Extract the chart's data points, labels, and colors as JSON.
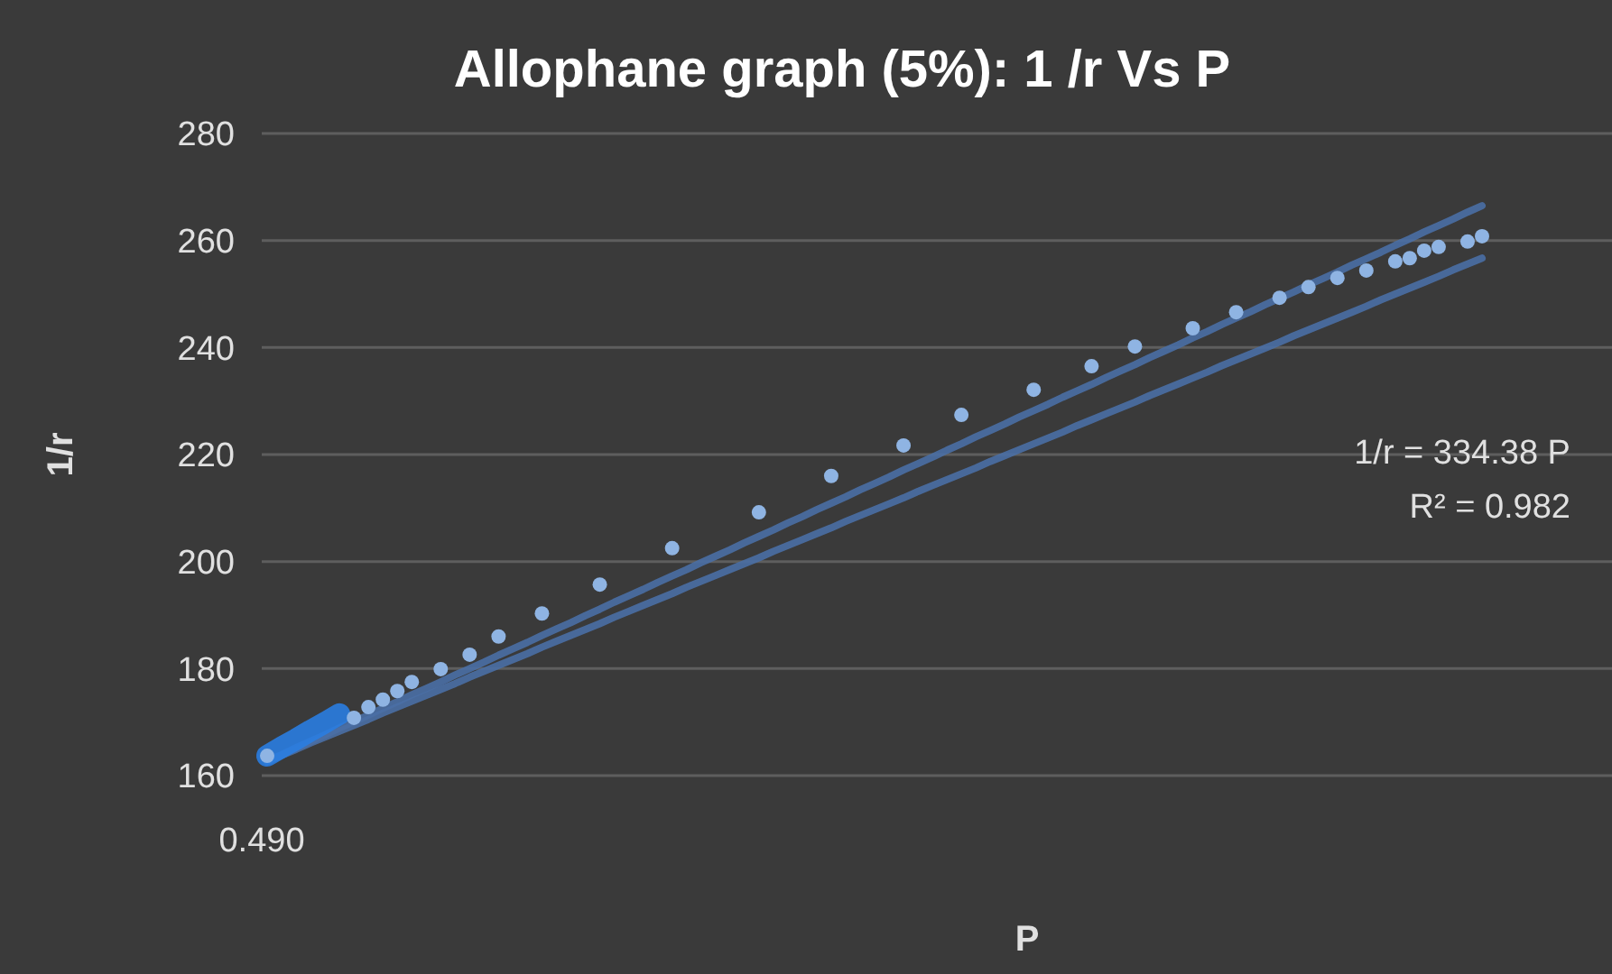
{
  "chart_data": {
    "type": "scatter",
    "title": "Allophane graph (5%): 1 /r Vs P",
    "xlabel": "P",
    "ylabel": "1/r",
    "categories": [
      null,
      null,
      null,
      null,
      null,
      null,
      null,
      null,
      null,
      null,
      null,
      null,
      null,
      null,
      null,
      null,
      null,
      null,
      null,
      null,
      null,
      null,
      null,
      null,
      null,
      null,
      null,
      null,
      null,
      null,
      null,
      null,
      null,
      null,
      null,
      null,
      null,
      null,
      null,
      null,
      null,
      null,
      null,
      null,
      null,
      null,
      null,
      null,
      null,
      null,
      null,
      null,
      null,
      null,
      null,
      null,
      null,
      null,
      null,
      null,
      null,
      null,
      null,
      null,
      null,
      null,
      null,
      null,
      null,
      null,
      null,
      null,
      null,
      null,
      null,
      null,
      null,
      null,
      null,
      null,
      null,
      null,
      null,
      null,
      null
    ],
    "ylim": [
      160,
      280
    ],
    "yticks": [
      160,
      180,
      200,
      220,
      240,
      260,
      280
    ],
    "grid": "y",
    "annotations": [
      "0.490",
      "1/r = 334.38 P",
      "R² = 0.982"
    ],
    "series": [
      {
        "type": "line",
        "color": "#4a6fa5",
        "marker": "none",
        "values": [
          162.7,
          163.9,
          165.2,
          166.4,
          167.6,
          168.9,
          170.1,
          171.3,
          172.6,
          173.8,
          175.1,
          176.3,
          177.5,
          178.8,
          180.0,
          181.2,
          182.5,
          183.7,
          184.9,
          186.2,
          187.4,
          188.6,
          189.9,
          191.1,
          192.4,
          193.6,
          194.8,
          196.1,
          197.3,
          198.5,
          199.8,
          201.0,
          202.2,
          203.5,
          204.7,
          205.9,
          207.2,
          208.4,
          209.7,
          210.9,
          212.1,
          213.4,
          214.6,
          215.8,
          217.1,
          218.3,
          219.5,
          220.8,
          222.0,
          223.3,
          224.5,
          225.7,
          227.0,
          228.2,
          229.4,
          230.7,
          231.9,
          233.1,
          234.4,
          235.6,
          236.8,
          238.1,
          239.3,
          240.5,
          241.8,
          243.0,
          244.3,
          245.5,
          246.7,
          248.0,
          249.2,
          250.4,
          251.7,
          252.9,
          254.1,
          255.4,
          256.6,
          257.8,
          259.1,
          260.3,
          261.6,
          262.8,
          264.0,
          265.3,
          266.5
        ]
      },
      {
        "type": "line",
        "color": "#4a6fa5",
        "marker": "none",
        "values": [
          162.7,
          163.8,
          164.9,
          166.1,
          167.2,
          168.3,
          169.4,
          170.5,
          171.7,
          172.8,
          173.9,
          175.0,
          176.1,
          177.2,
          178.4,
          179.5,
          180.6,
          181.7,
          182.8,
          184.0,
          185.1,
          186.2,
          187.3,
          188.4,
          189.6,
          190.7,
          191.8,
          192.9,
          194.0,
          195.2,
          196.3,
          197.4,
          198.5,
          199.6,
          200.7,
          201.9,
          203.0,
          204.1,
          205.2,
          206.3,
          207.5,
          208.6,
          209.7,
          210.8,
          211.9,
          213.1,
          214.2,
          215.3,
          216.4,
          217.5,
          218.7,
          219.8,
          220.9,
          222.0,
          223.1,
          224.2,
          225.4,
          226.5,
          227.6,
          228.7,
          229.8,
          231.0,
          232.1,
          233.2,
          234.3,
          235.4,
          236.6,
          237.7,
          238.8,
          239.9,
          241.0,
          242.2,
          243.3,
          244.4,
          245.5,
          246.6,
          247.7,
          248.9,
          250.0,
          251.1,
          252.2,
          253.3,
          254.5,
          255.6,
          256.7
        ]
      },
      {
        "type": "line",
        "color": "#2a7de1",
        "marker": "none",
        "values": [
          163.7,
          165.3,
          166.8,
          168.4,
          169.9,
          171.5,
          null,
          null,
          null,
          null,
          null,
          null,
          null,
          null,
          null,
          null,
          null,
          null,
          null,
          null,
          null,
          null,
          null,
          null,
          null,
          null,
          null,
          null,
          null,
          null,
          null,
          null,
          null,
          null,
          null,
          null,
          null,
          null,
          null,
          null,
          null,
          null,
          null,
          null,
          null,
          null,
          null,
          null,
          null,
          null,
          null,
          null,
          null,
          null,
          null,
          null,
          null,
          null,
          null,
          null,
          null,
          null,
          null,
          null,
          null,
          null,
          null,
          null,
          null,
          null,
          null,
          null,
          null,
          null,
          null,
          null,
          null,
          null,
          null,
          null,
          null,
          null,
          null,
          null,
          null
        ]
      },
      {
        "color": "#8fb4e3",
        "marker": "circle",
        "values": [
          163.7,
          null,
          null,
          null,
          null,
          null,
          170.8,
          172.8,
          174.2,
          175.8,
          177.5,
          null,
          179.9,
          null,
          182.6,
          null,
          186.0,
          null,
          null,
          190.3,
          null,
          null,
          null,
          195.7,
          null,
          null,
          null,
          null,
          202.5,
          null,
          null,
          null,
          null,
          null,
          209.2,
          null,
          null,
          null,
          null,
          216.0,
          null,
          null,
          null,
          null,
          221.7,
          null,
          null,
          null,
          227.4,
          null,
          null,
          null,
          null,
          232.1,
          null,
          null,
          null,
          236.5,
          null,
          null,
          240.2,
          null,
          null,
          null,
          243.6,
          null,
          null,
          246.6,
          null,
          null,
          249.3,
          null,
          251.3,
          null,
          253.0,
          null,
          254.4,
          null,
          256.1,
          256.7,
          258.1,
          258.8,
          null,
          259.8,
          260.8
        ]
      }
    ]
  }
}
